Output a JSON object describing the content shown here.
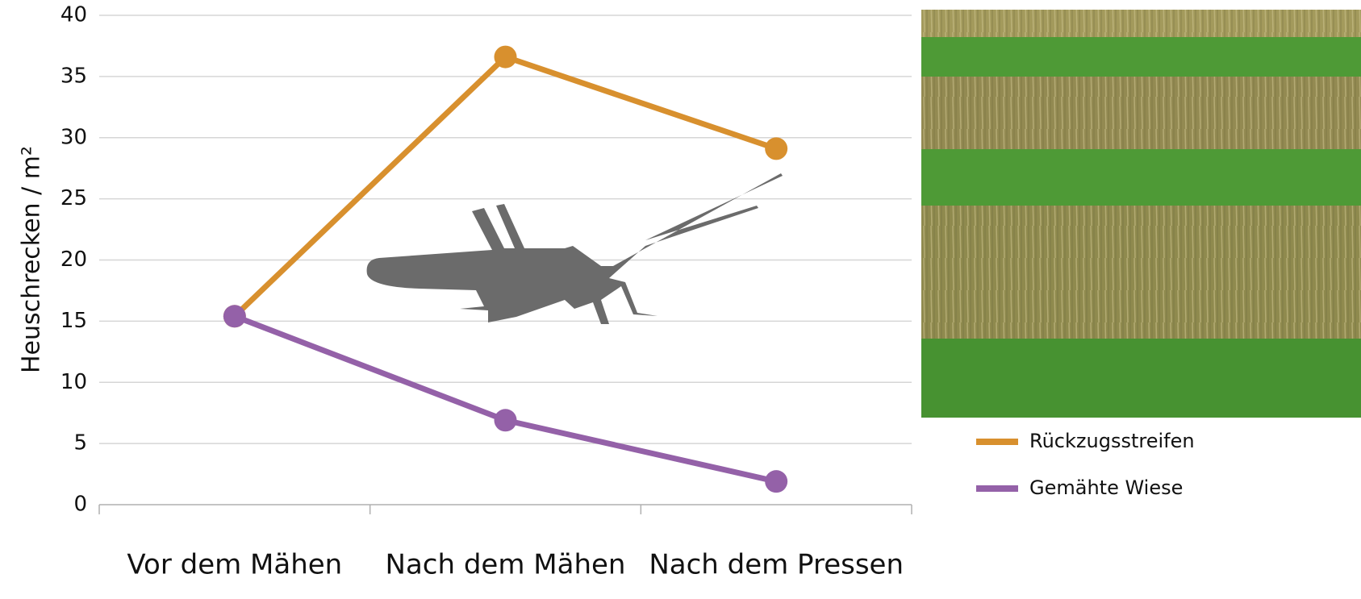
{
  "chart_data": {
    "type": "line",
    "y_label": "Heuschrecken / m²",
    "categories": [
      "Vor dem Mähen",
      "Nach dem Mähen",
      "Nach dem Pressen"
    ],
    "series": [
      {
        "name": "Rückzugsstreifen",
        "color": "#d8902e",
        "values": [
          15.4,
          36.6,
          29.1
        ]
      },
      {
        "name": "Gemähte Wiese",
        "color": "#9461a8",
        "values": [
          15.4,
          6.9,
          1.9
        ]
      }
    ],
    "ylim": [
      0,
      40
    ],
    "yticks": [
      0,
      5,
      10,
      15,
      20,
      25,
      30,
      35,
      40
    ],
    "grid": true
  }
}
